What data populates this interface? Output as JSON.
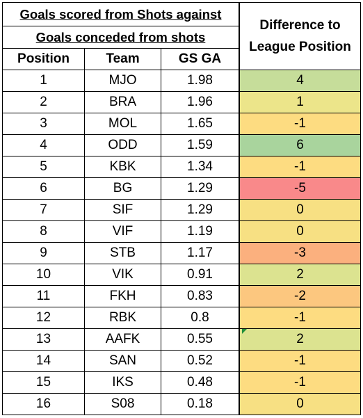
{
  "table": {
    "title_line1": "Goals scored from Shots against",
    "title_line2": "Goals conceded from shots",
    "diff_header_line1": "Difference to",
    "diff_header_line2": "League Position",
    "col_position": "Position",
    "col_team": "Team",
    "col_gsga": "GS GA",
    "rows": [
      {
        "position": "1",
        "team": "MJO",
        "gsga": "1.98",
        "diff": "4",
        "color": "#c6dd9a"
      },
      {
        "position": "2",
        "team": "BRA",
        "gsga": "1.96",
        "diff": "1",
        "color": "#ece58a"
      },
      {
        "position": "3",
        "team": "MOL",
        "gsga": "1.65",
        "diff": "-1",
        "color": "#fddc81"
      },
      {
        "position": "4",
        "team": "ODD",
        "gsga": "1.59",
        "diff": "6",
        "color": "#a9d49d"
      },
      {
        "position": "5",
        "team": "KBK",
        "gsga": "1.34",
        "diff": "-1",
        "color": "#fddc81"
      },
      {
        "position": "6",
        "team": "BG",
        "gsga": "1.29",
        "diff": "-5",
        "color": "#f9898a"
      },
      {
        "position": "7",
        "team": "SIF",
        "gsga": "1.29",
        "diff": "0",
        "color": "#f7e083"
      },
      {
        "position": "8",
        "team": "VIF",
        "gsga": "1.19",
        "diff": "0",
        "color": "#f7e083"
      },
      {
        "position": "9",
        "team": "STB",
        "gsga": "1.17",
        "diff": "-3",
        "color": "#fbb07e"
      },
      {
        "position": "10",
        "team": "VIK",
        "gsga": "0.91",
        "diff": "2",
        "color": "#dce390"
      },
      {
        "position": "11",
        "team": "FKH",
        "gsga": "0.83",
        "diff": "-2",
        "color": "#fcc77f"
      },
      {
        "position": "12",
        "team": "RBK",
        "gsga": "0.8",
        "diff": "-1",
        "color": "#fddc81"
      },
      {
        "position": "13",
        "team": "AAFK",
        "gsga": "0.55",
        "diff": "2",
        "color": "#dce390"
      },
      {
        "position": "14",
        "team": "SAN",
        "gsga": "0.52",
        "diff": "-1",
        "color": "#fddc81"
      },
      {
        "position": "15",
        "team": "IKS",
        "gsga": "0.48",
        "diff": "-1",
        "color": "#fddc81"
      },
      {
        "position": "16",
        "team": "S08",
        "gsga": "0.18",
        "diff": "0",
        "color": "#f7e083"
      }
    ]
  }
}
